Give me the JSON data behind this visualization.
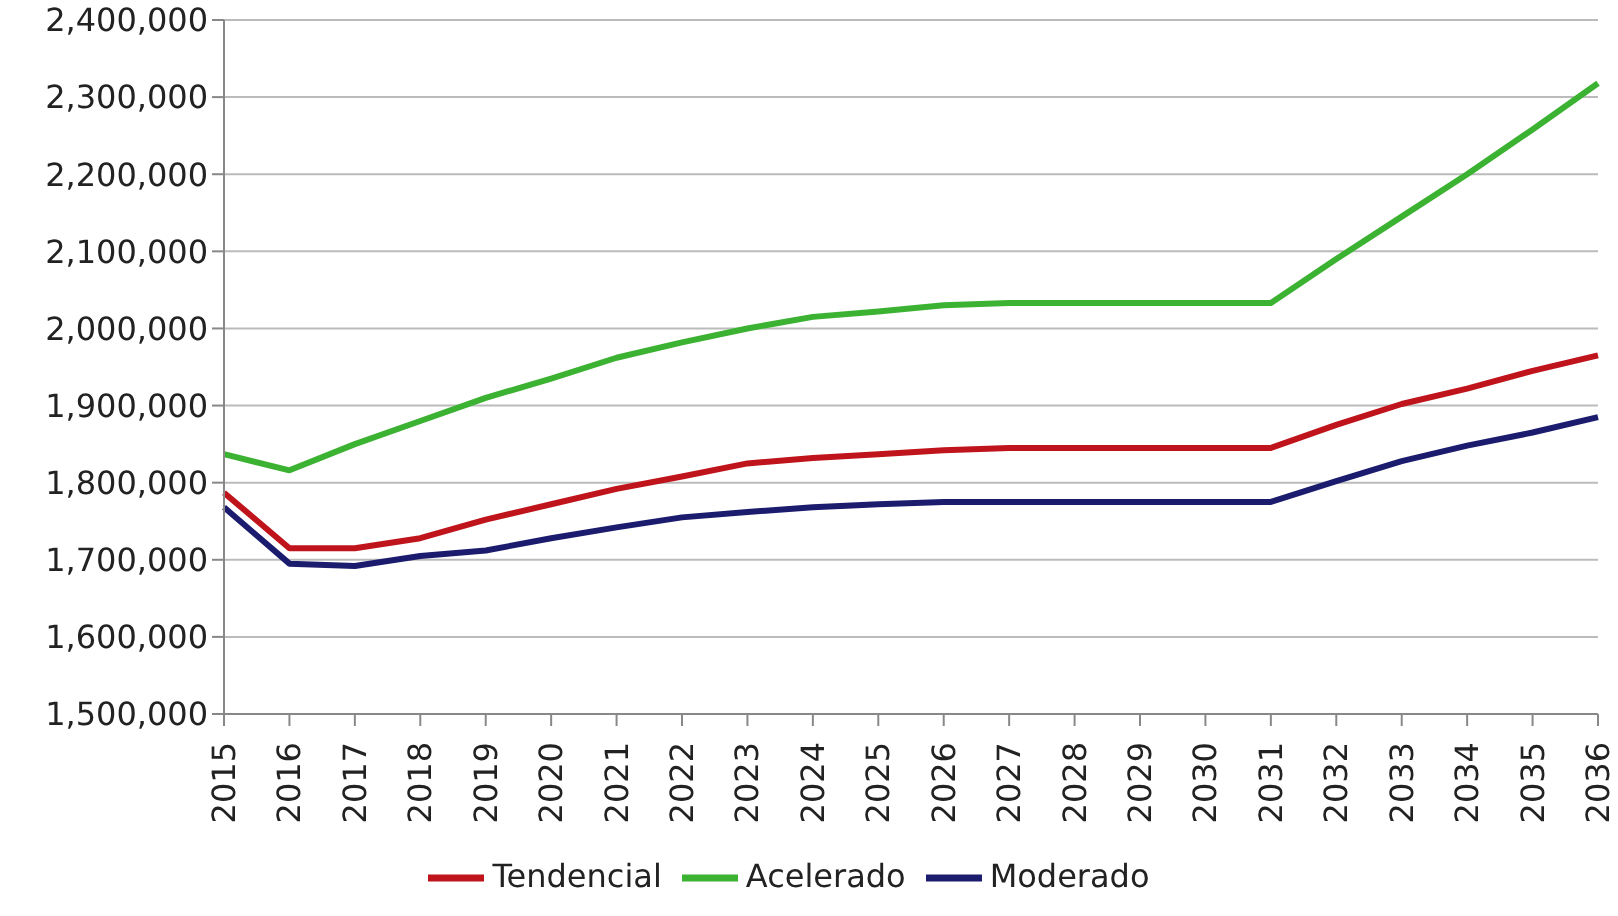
{
  "chart_data": {
    "type": "line",
    "categories": [
      "2015",
      "2016",
      "2017",
      "2018",
      "2019",
      "2020",
      "2021",
      "2022",
      "2023",
      "2024",
      "2025",
      "2026",
      "2027",
      "2028",
      "2029",
      "2030",
      "2031",
      "2032",
      "2033",
      "2034",
      "2035",
      "2036"
    ],
    "series": [
      {
        "name": "Tendencial",
        "color": "#c0141c",
        "values": [
          1787000,
          1715000,
          1715000,
          1728000,
          1752000,
          1772000,
          1792000,
          1808000,
          1825000,
          1832000,
          1837000,
          1842000,
          1845000,
          1845000,
          1845000,
          1845000,
          1845000,
          1875000,
          1902000,
          1922000,
          1945000,
          1965000
        ]
      },
      {
        "name": "Acelerado",
        "color": "#3cb232",
        "values": [
          1837000,
          1816000,
          1850000,
          1880000,
          1910000,
          1935000,
          1962000,
          1982000,
          2000000,
          2015000,
          2022000,
          2030000,
          2033000,
          2033000,
          2033000,
          2033000,
          2033000,
          2090000,
          2145000,
          2200000,
          2258000,
          2318000
        ]
      },
      {
        "name": "Moderado",
        "color": "#1c1c6e",
        "values": [
          1768000,
          1695000,
          1692000,
          1705000,
          1712000,
          1728000,
          1742000,
          1755000,
          1762000,
          1768000,
          1772000,
          1775000,
          1775000,
          1775000,
          1775000,
          1775000,
          1775000,
          1802000,
          1828000,
          1848000,
          1865000,
          1885000
        ]
      }
    ],
    "ylim": [
      1500000,
      2400000
    ],
    "yticks": [
      {
        "value": 1500000,
        "label": "1,500,000"
      },
      {
        "value": 1600000,
        "label": "1,600,000"
      },
      {
        "value": 1700000,
        "label": "1,700,000"
      },
      {
        "value": 1800000,
        "label": "1,800,000"
      },
      {
        "value": 1900000,
        "label": "1,900,000"
      },
      {
        "value": 2000000,
        "label": "2,000,000"
      },
      {
        "value": 2100000,
        "label": "2,100,000"
      },
      {
        "value": 2200000,
        "label": "2,200,000"
      },
      {
        "value": 2300000,
        "label": "2,300,000"
      },
      {
        "value": 2400000,
        "label": "2,400,000"
      }
    ],
    "grid": "y",
    "legend": "bottom",
    "marker": "none",
    "line_style": "solid"
  }
}
